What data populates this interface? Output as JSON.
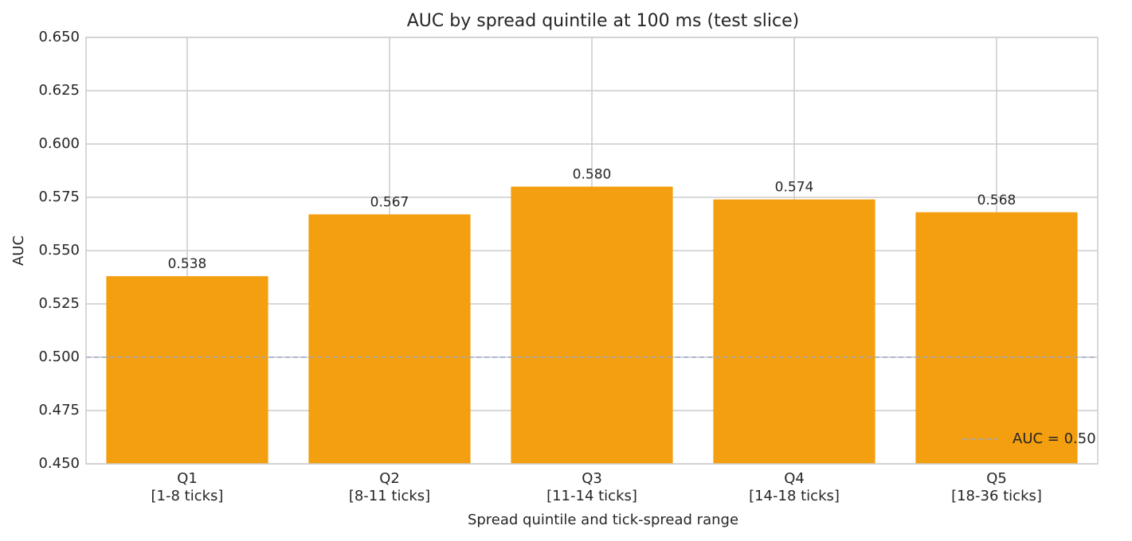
{
  "chart_data": {
    "type": "bar",
    "title": "AUC by spread quintile at 100 ms (test slice)",
    "x_label": "Spread quintile and tick-spread range",
    "y_label": "AUC",
    "categories": [
      "Q1",
      "Q2",
      "Q3",
      "Q4",
      "Q5"
    ],
    "category_ranges": [
      "[1-8 ticks]",
      "[8-11 ticks]",
      "[11-14 ticks]",
      "[14-18 ticks]",
      "[18-36 ticks]"
    ],
    "values": [
      0.538,
      0.567,
      0.58,
      0.574,
      0.568
    ],
    "value_labels": [
      "0.538",
      "0.567",
      "0.580",
      "0.574",
      "0.568"
    ],
    "color": "#f39f0f",
    "ylim": [
      0.45,
      0.65
    ],
    "yticks": [
      {
        "value": 0.45,
        "label": "0.450"
      },
      {
        "value": 0.475,
        "label": "0.475"
      },
      {
        "value": 0.5,
        "label": "0.500"
      },
      {
        "value": 0.525,
        "label": "0.525"
      },
      {
        "value": 0.55,
        "label": "0.550"
      },
      {
        "value": 0.575,
        "label": "0.575"
      },
      {
        "value": 0.6,
        "label": "0.600"
      },
      {
        "value": 0.625,
        "label": "0.625"
      },
      {
        "value": 0.65,
        "label": "0.650"
      }
    ],
    "grid": true,
    "reference_line": {
      "value": 0.5,
      "label": "AUC = 0.50",
      "color": "#9aa6c6"
    },
    "legend_position": "lower right"
  }
}
